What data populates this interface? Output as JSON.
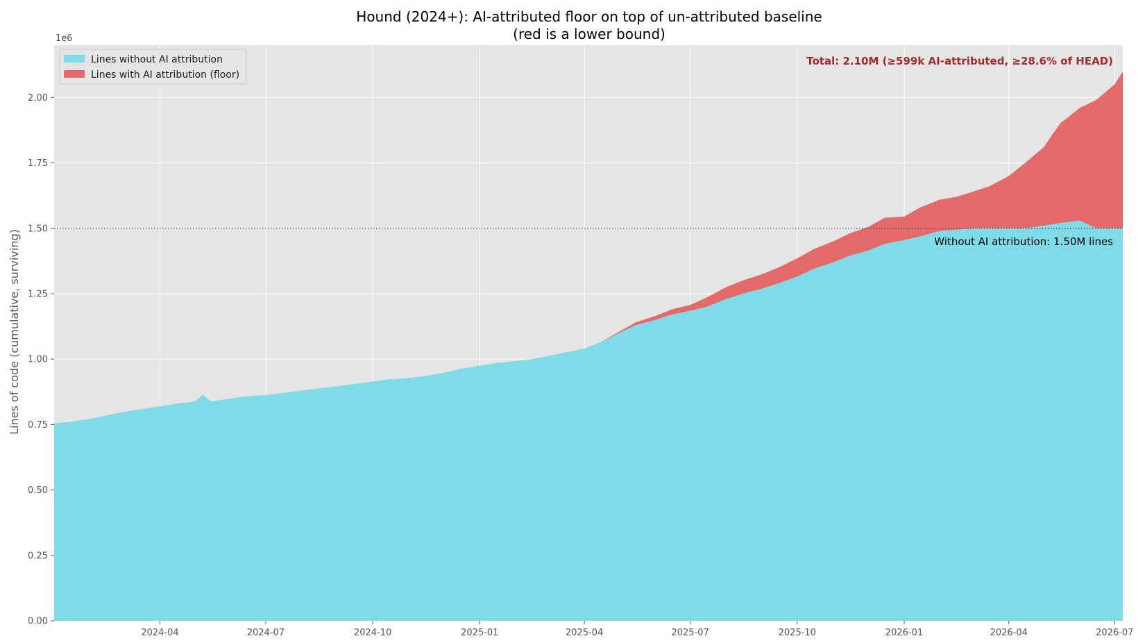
{
  "chart_data": {
    "type": "area",
    "title": "Hound (2024+): AI-attributed floor on top of un-attributed baseline",
    "subtitle": "(red is a lower bound)",
    "xlabel": "",
    "ylabel": "Lines of code (cumulative, surviving)",
    "y_multiplier_label": "1e6",
    "xlim": [
      "2024-01-01",
      "2026-07-08"
    ],
    "ylim": [
      0,
      2200000
    ],
    "grid": true,
    "legend_placement": "top-left",
    "x_ticks": [
      "2024-04",
      "2024-07",
      "2024-10",
      "2025-01",
      "2025-04",
      "2025-07",
      "2025-10",
      "2026-01",
      "2026-04",
      "2026-07"
    ],
    "y_ticks": [
      "0.00",
      "0.25",
      "0.50",
      "0.75",
      "1.00",
      "1.25",
      "1.50",
      "1.75",
      "2.00"
    ],
    "x": [
      "2024-01-01",
      "2024-01-15",
      "2024-02-01",
      "2024-02-15",
      "2024-03-01",
      "2024-03-15",
      "2024-04-01",
      "2024-04-15",
      "2024-05-01",
      "2024-05-08",
      "2024-05-15",
      "2024-06-01",
      "2024-06-15",
      "2024-07-01",
      "2024-07-15",
      "2024-08-01",
      "2024-08-15",
      "2024-09-01",
      "2024-09-15",
      "2024-10-01",
      "2024-10-15",
      "2024-11-01",
      "2024-11-15",
      "2024-12-01",
      "2024-12-15",
      "2025-01-01",
      "2025-01-15",
      "2025-02-01",
      "2025-02-15",
      "2025-03-01",
      "2025-03-15",
      "2025-04-01",
      "2025-04-15",
      "2025-05-01",
      "2025-05-15",
      "2025-06-01",
      "2025-06-15",
      "2025-07-01",
      "2025-07-15",
      "2025-08-01",
      "2025-08-15",
      "2025-09-01",
      "2025-09-15",
      "2025-10-01",
      "2025-10-15",
      "2025-11-01",
      "2025-11-15",
      "2025-12-01",
      "2025-12-15",
      "2026-01-01",
      "2026-01-15",
      "2026-02-01",
      "2026-02-15",
      "2026-03-01",
      "2026-03-15",
      "2026-04-01",
      "2026-04-15",
      "2026-05-01",
      "2026-05-15",
      "2026-06-01",
      "2026-06-15",
      "2026-07-01",
      "2026-07-08"
    ],
    "series": [
      {
        "name": "Lines without AI attribution",
        "color": "#7fdbe8",
        "values": [
          755000,
          760000,
          772000,
          785000,
          798000,
          808000,
          820000,
          830000,
          838000,
          865000,
          838000,
          850000,
          858000,
          863000,
          870000,
          880000,
          888000,
          897000,
          905000,
          915000,
          923000,
          928000,
          935000,
          948000,
          962000,
          975000,
          985000,
          993000,
          1000000,
          1012000,
          1025000,
          1040000,
          1065000,
          1100000,
          1130000,
          1150000,
          1170000,
          1185000,
          1200000,
          1230000,
          1250000,
          1270000,
          1290000,
          1315000,
          1345000,
          1370000,
          1395000,
          1415000,
          1440000,
          1455000,
          1470000,
          1490000,
          1495000,
          1500000,
          1500000,
          1500000,
          1500000,
          1510000,
          1520000,
          1530000,
          1500000,
          1500000,
          1500000
        ]
      },
      {
        "name": "Lines with AI attribution (floor)",
        "color": "#e26a6a",
        "values": [
          0,
          0,
          0,
          0,
          0,
          0,
          0,
          0,
          0,
          0,
          0,
          0,
          0,
          0,
          0,
          0,
          0,
          0,
          0,
          0,
          0,
          0,
          0,
          0,
          0,
          0,
          0,
          0,
          0,
          0,
          0,
          0,
          0,
          5000,
          10000,
          15000,
          20000,
          22000,
          35000,
          45000,
          50000,
          55000,
          60000,
          70000,
          75000,
          80000,
          85000,
          90000,
          100000,
          90000,
          110000,
          120000,
          125000,
          140000,
          160000,
          200000,
          250000,
          300000,
          380000,
          430000,
          490000,
          550000,
          599000
        ]
      }
    ],
    "annotations": {
      "total": "Total: 2.10M  (≥599k AI-attributed, ≥28.6% of HEAD)",
      "total_color": "#a52a2a",
      "baseline": "Without AI attribution: 1.50M lines",
      "baseline_value": 1500000
    },
    "colors": {
      "plot_bg": "#e5e5e5",
      "grid": "#ffffff"
    }
  }
}
